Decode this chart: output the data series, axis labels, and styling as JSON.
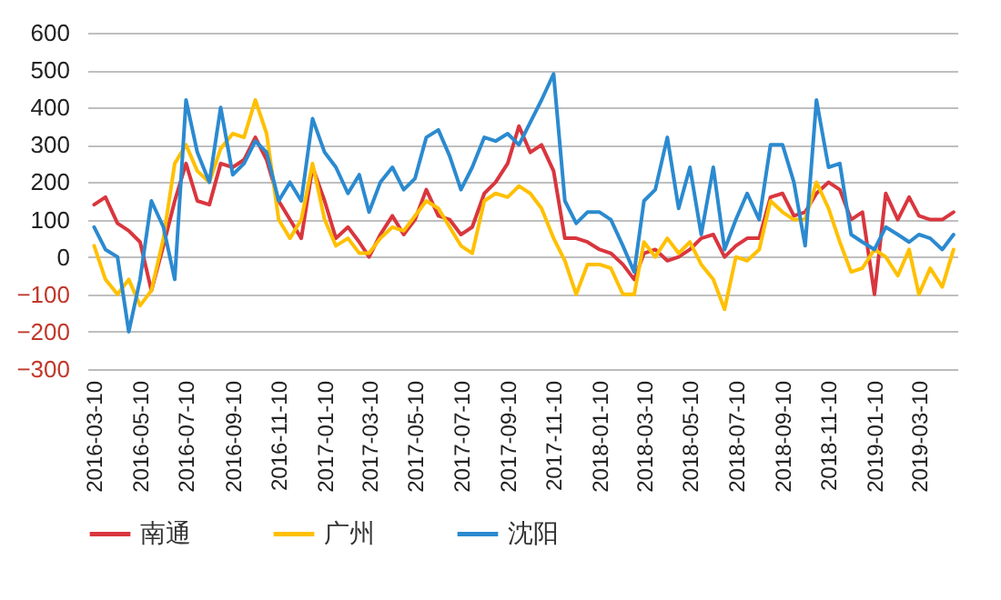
{
  "chart_data": {
    "type": "line",
    "x": [
      "2016-03-10",
      "2016-03-25",
      "2016-04-10",
      "2016-04-25",
      "2016-05-10",
      "2016-05-25",
      "2016-06-10",
      "2016-06-25",
      "2016-07-10",
      "2016-07-25",
      "2016-08-10",
      "2016-08-25",
      "2016-09-10",
      "2016-09-25",
      "2016-10-10",
      "2016-10-25",
      "2016-11-10",
      "2016-11-25",
      "2016-12-10",
      "2016-12-25",
      "2017-01-10",
      "2017-01-25",
      "2017-02-10",
      "2017-02-25",
      "2017-03-10",
      "2017-03-25",
      "2017-04-10",
      "2017-04-25",
      "2017-05-10",
      "2017-05-25",
      "2017-06-10",
      "2017-06-25",
      "2017-07-10",
      "2017-07-25",
      "2017-08-10",
      "2017-08-25",
      "2017-09-10",
      "2017-09-25",
      "2017-10-10",
      "2017-10-25",
      "2017-11-10",
      "2017-11-25",
      "2017-12-10",
      "2017-12-25",
      "2018-01-10",
      "2018-01-25",
      "2018-02-10",
      "2018-02-25",
      "2018-03-10",
      "2018-03-25",
      "2018-04-10",
      "2018-04-25",
      "2018-05-10",
      "2018-05-25",
      "2018-06-10",
      "2018-06-25",
      "2018-07-10",
      "2018-07-25",
      "2018-08-10",
      "2018-08-25",
      "2018-09-10",
      "2018-09-25",
      "2018-10-10",
      "2018-10-25",
      "2018-11-10",
      "2018-11-25",
      "2018-12-10",
      "2018-12-25",
      "2019-01-10",
      "2019-01-25",
      "2019-02-10",
      "2019-02-25",
      "2019-03-10",
      "2019-03-25",
      "2019-04-10",
      "2019-04-25"
    ],
    "series": [
      {
        "name": "南通",
        "color": "#d9363e",
        "values": [
          140,
          160,
          90,
          70,
          40,
          -90,
          30,
          150,
          250,
          150,
          140,
          250,
          240,
          260,
          320,
          260,
          150,
          100,
          50,
          240,
          150,
          50,
          80,
          40,
          0,
          60,
          110,
          60,
          100,
          180,
          110,
          100,
          60,
          80,
          170,
          200,
          250,
          350,
          280,
          300,
          230,
          50,
          50,
          40,
          20,
          10,
          -20,
          -60,
          10,
          20,
          -10,
          0,
          20,
          50,
          60,
          0,
          30,
          50,
          50,
          160,
          170,
          110,
          120,
          170,
          200,
          180,
          100,
          120,
          -100,
          170,
          100,
          160,
          110,
          100,
          100,
          120
        ]
      },
      {
        "name": "广州",
        "color": "#ffc000",
        "values": [
          30,
          -60,
          -100,
          -60,
          -130,
          -90,
          50,
          250,
          300,
          230,
          200,
          290,
          330,
          320,
          420,
          330,
          100,
          50,
          100,
          250,
          100,
          30,
          50,
          10,
          10,
          50,
          80,
          70,
          110,
          150,
          130,
          80,
          30,
          10,
          150,
          170,
          160,
          190,
          170,
          130,
          50,
          -10,
          -100,
          -20,
          -20,
          -30,
          -100,
          -100,
          40,
          0,
          50,
          10,
          40,
          -20,
          -60,
          -140,
          0,
          -10,
          20,
          150,
          120,
          100,
          100,
          200,
          130,
          40,
          -40,
          -30,
          20,
          0,
          -50,
          20,
          -100,
          -30,
          -80,
          20
        ]
      },
      {
        "name": "沈阳",
        "color": "#2b8ad0",
        "values": [
          80,
          20,
          0,
          -200,
          -60,
          150,
          80,
          -60,
          420,
          280,
          200,
          400,
          220,
          250,
          310,
          280,
          150,
          200,
          150,
          370,
          280,
          240,
          170,
          220,
          120,
          200,
          240,
          180,
          210,
          320,
          340,
          270,
          180,
          240,
          320,
          310,
          330,
          300,
          360,
          420,
          490,
          150,
          90,
          120,
          120,
          100,
          30,
          -40,
          150,
          180,
          320,
          130,
          240,
          60,
          240,
          20,
          100,
          170,
          100,
          300,
          300,
          200,
          30,
          420,
          240,
          250,
          60,
          40,
          20,
          80,
          60,
          40,
          60,
          50,
          20,
          60
        ]
      }
    ],
    "xlim": [
      "2016-03-01",
      "2019-04-30"
    ],
    "xticks": [
      "2016-03-10",
      "2016-05-10",
      "2016-07-10",
      "2016-09-10",
      "2016-11-10",
      "2017-01-10",
      "2017-03-10",
      "2017-05-10",
      "2017-07-10",
      "2017-09-10",
      "2017-11-10",
      "2018-01-10",
      "2018-03-10",
      "2018-05-10",
      "2018-07-10",
      "2018-09-10",
      "2018-11-10",
      "2019-01-10",
      "2019-03-10"
    ],
    "ylim": [
      -300,
      600
    ],
    "yticks": [
      -300,
      -200,
      -100,
      0,
      100,
      200,
      300,
      400,
      500,
      600
    ],
    "grid": "y",
    "legend": "bottom",
    "marker": "none",
    "line_style": "solid"
  }
}
